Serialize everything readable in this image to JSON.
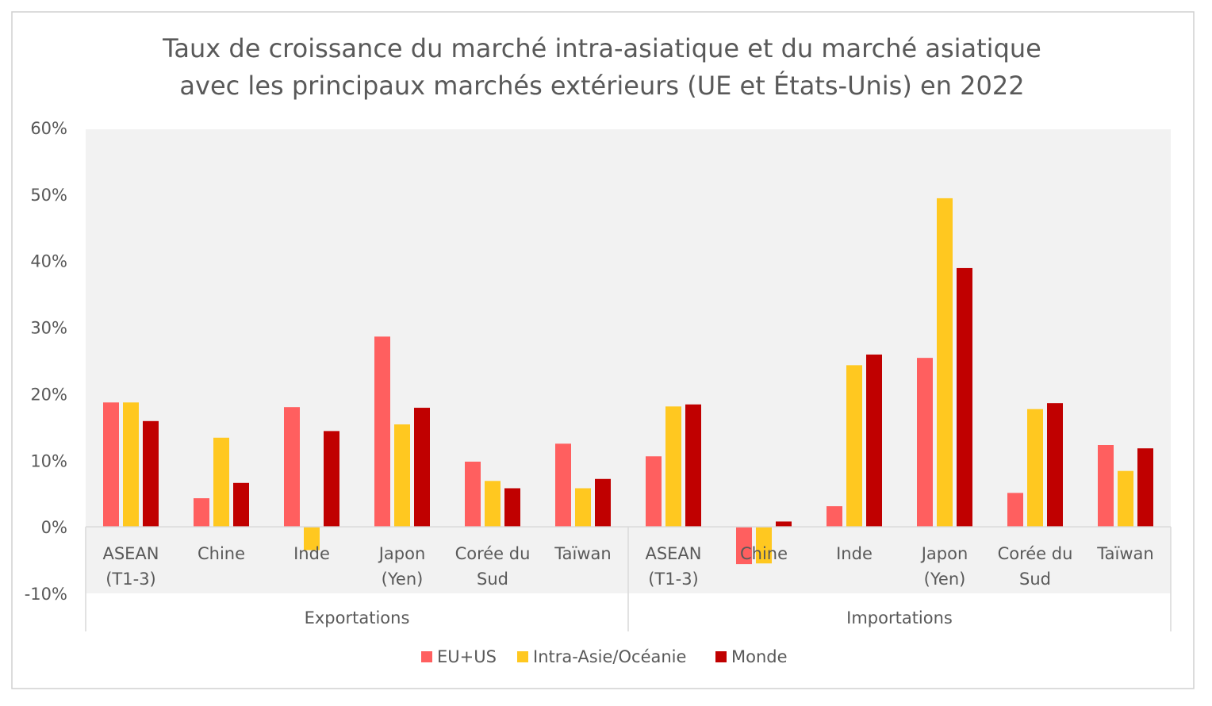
{
  "chart_data": {
    "type": "bar",
    "title": [
      "Taux de croissance du marché intra-asiatique et du marché asiatique",
      "avec les principaux marchés extérieurs (UE et États-Unis) en 2022"
    ],
    "groups": [
      {
        "label": "Exportations",
        "categories": [
          [
            "ASEAN",
            "(T1-3)"
          ],
          [
            "Chine"
          ],
          [
            "Inde"
          ],
          [
            "Japon",
            "(Yen)"
          ],
          [
            "Corée du",
            "Sud"
          ],
          [
            "Taïwan"
          ]
        ]
      },
      {
        "label": "Importations",
        "categories": [
          [
            "ASEAN",
            "(T1-3)"
          ],
          [
            "Chine"
          ],
          [
            "Inde"
          ],
          [
            "Japon",
            "(Yen)"
          ],
          [
            "Corée du",
            "Sud"
          ],
          [
            "Taïwan"
          ]
        ]
      }
    ],
    "series": [
      {
        "name": "EU+US",
        "color": "#ff5f5f",
        "values": [
          18.7,
          4.3,
          18.0,
          28.6,
          9.8,
          12.5,
          10.6,
          -5.6,
          3.1,
          25.4,
          5.1,
          12.3
        ]
      },
      {
        "name": "Intra-Asie/Océanie",
        "color": "#ffc820",
        "values": [
          18.7,
          13.4,
          -3.5,
          15.4,
          6.9,
          5.8,
          18.1,
          -5.5,
          24.3,
          49.4,
          17.7,
          8.4
        ]
      },
      {
        "name": "Monde",
        "color": "#c00000",
        "values": [
          15.9,
          6.6,
          14.4,
          17.9,
          5.8,
          7.2,
          18.4,
          0.8,
          25.9,
          38.9,
          18.6,
          11.8
        ]
      }
    ],
    "ylim": [
      -10,
      60
    ],
    "yticks": [
      "-10%",
      "0%",
      "10%",
      "20%",
      "30%",
      "40%",
      "50%",
      "60%"
    ],
    "ytick_values": [
      -10,
      0,
      10,
      20,
      30,
      40,
      50,
      60
    ],
    "legend": "bottom",
    "grid": false
  }
}
